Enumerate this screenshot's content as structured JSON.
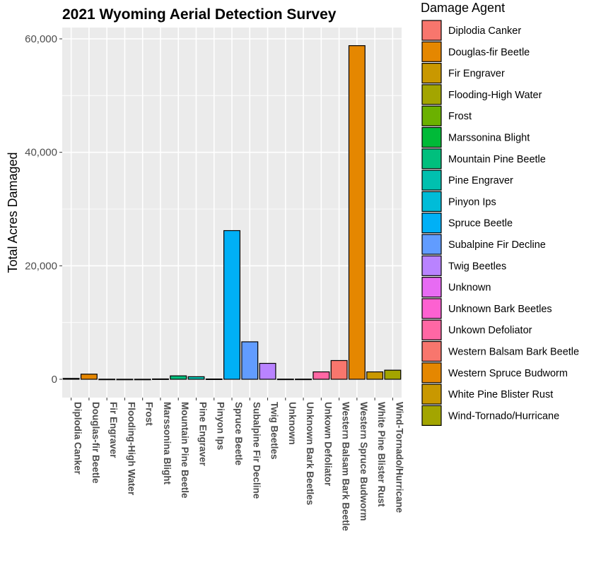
{
  "chart_data": {
    "type": "bar",
    "title": "2021 Wyoming Aerial Detection Survey",
    "xlabel": "",
    "ylabel": "Total Acres Damaged",
    "ylim": [
      0,
      62000
    ],
    "yticks": [
      0,
      20000,
      40000,
      60000
    ],
    "ytick_labels": [
      "0",
      "20,000",
      "40,000",
      "60,000"
    ],
    "grid": true,
    "legend_title": "Damage Agent",
    "legend_position": "right",
    "categories": [
      "Diplodia Canker",
      "Douglas-fir Beetle",
      "Fir Engraver",
      "Flooding-High Water",
      "Frost",
      "Marssonina Blight",
      "Mountain Pine Beetle",
      "Pine Engraver",
      "Pinyon Ips",
      "Spruce Beetle",
      "Subalpine Fir Decline",
      "Twig Beetles",
      "Unknown",
      "Unknown Bark Beetles",
      "Unkown Defoliator",
      "Western Balsam Bark Beetle",
      "Western Spruce Budworm",
      "White Pine Blister Rust",
      "Wind-Tornado/Hurricane"
    ],
    "values": [
      150,
      900,
      20,
      10,
      10,
      60,
      600,
      450,
      50,
      26200,
      6600,
      2800,
      30,
      30,
      1300,
      3300,
      58800,
      1300,
      1600
    ],
    "colors": [
      "#F8766D",
      "#E58700",
      "#C99800",
      "#A3A500",
      "#6BB100",
      "#00BA38",
      "#00BF7D",
      "#00C0AF",
      "#00BCD8",
      "#00B0F6",
      "#619CFF",
      "#B983FF",
      "#E76BF3",
      "#FD61D1",
      "#FF67A4",
      "#F8766D",
      "#E58700",
      "#C99800",
      "#A3A500"
    ]
  }
}
